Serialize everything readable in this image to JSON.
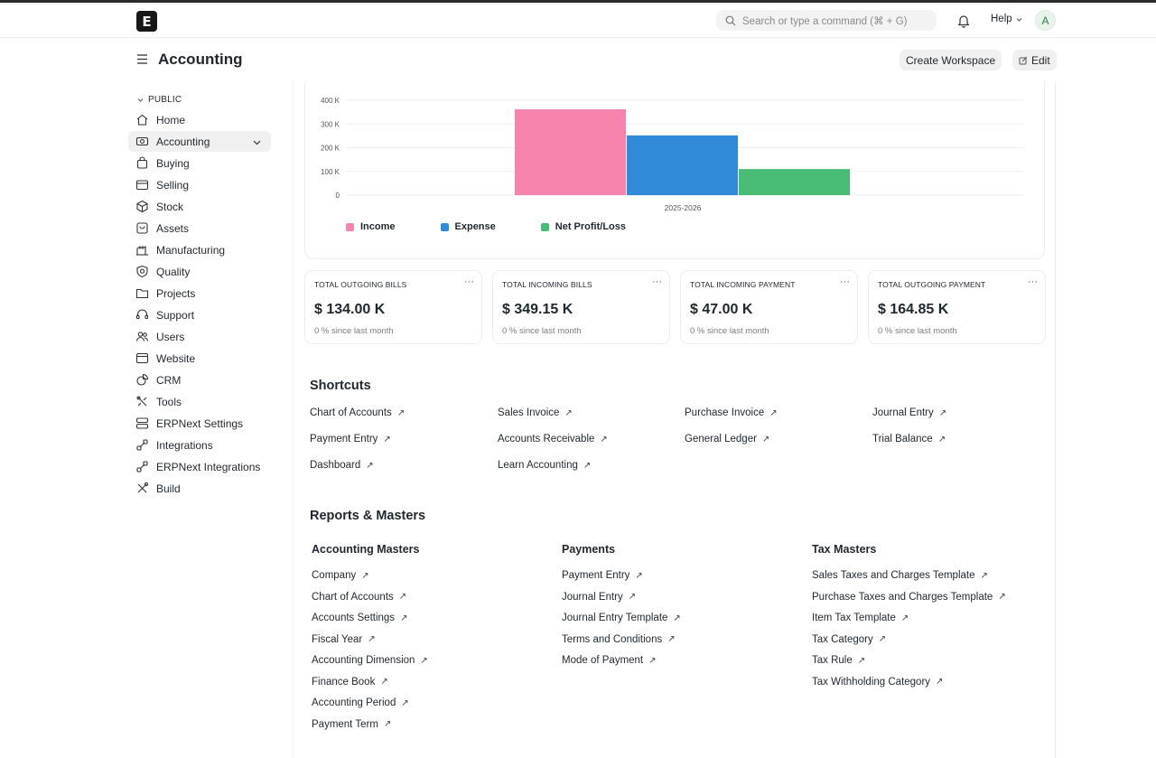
{
  "navbar": {
    "logo_letter": "E",
    "search_placeholder": "Search or type a command (⌘ + G)",
    "help_label": "Help",
    "avatar_letter": "A"
  },
  "page": {
    "title": "Accounting",
    "create_workspace_label": "Create Workspace",
    "edit_label": "Edit"
  },
  "sidebar": {
    "section_label": "PUBLIC",
    "items": [
      {
        "label": "Home",
        "icon": "home-icon"
      },
      {
        "label": "Accounting",
        "icon": "accounting-icon",
        "active": true
      },
      {
        "label": "Buying",
        "icon": "buying-icon"
      },
      {
        "label": "Selling",
        "icon": "selling-icon"
      },
      {
        "label": "Stock",
        "icon": "stock-icon"
      },
      {
        "label": "Assets",
        "icon": "assets-icon"
      },
      {
        "label": "Manufacturing",
        "icon": "manufacturing-icon"
      },
      {
        "label": "Quality",
        "icon": "quality-icon"
      },
      {
        "label": "Projects",
        "icon": "projects-icon"
      },
      {
        "label": "Support",
        "icon": "support-icon"
      },
      {
        "label": "Users",
        "icon": "users-icon"
      },
      {
        "label": "Website",
        "icon": "website-icon"
      },
      {
        "label": "CRM",
        "icon": "crm-icon"
      },
      {
        "label": "Tools",
        "icon": "tools-icon"
      },
      {
        "label": "ERPNext Settings",
        "icon": "settings-icon"
      },
      {
        "label": "Integrations",
        "icon": "integrations-icon"
      },
      {
        "label": "ERPNext Integrations",
        "icon": "integrations-icon"
      },
      {
        "label": "Build",
        "icon": "build-icon"
      }
    ]
  },
  "chart_data": {
    "type": "bar",
    "categories": [
      "2025-2026"
    ],
    "series": [
      {
        "name": "Income",
        "values": [
          362000
        ],
        "color": "#f683ae"
      },
      {
        "name": "Expense",
        "values": [
          252000
        ],
        "color": "#318ad8"
      },
      {
        "name": "Net Profit/Loss",
        "values": [
          110000
        ],
        "color": "#48bb74"
      }
    ],
    "y_ticks": [
      "0",
      "100 K",
      "200 K",
      "300 K",
      "400 K"
    ],
    "ylim": [
      0,
      400000
    ],
    "legend": "bottom-left",
    "grid": true
  },
  "cards": [
    {
      "title": "TOTAL OUTGOING BILLS",
      "value": "$ 134.00 K",
      "sub": "0 % since last month"
    },
    {
      "title": "TOTAL INCOMING BILLS",
      "value": "$ 349.15 K",
      "sub": "0 % since last month"
    },
    {
      "title": "TOTAL INCOMING PAYMENT",
      "value": "$ 47.00 K",
      "sub": "0 % since last month"
    },
    {
      "title": "TOTAL OUTGOING PAYMENT",
      "value": "$ 164.85 K",
      "sub": "0 % since last month"
    }
  ],
  "card_menu": "···",
  "shortcuts": {
    "title": "Shortcuts",
    "items": [
      "Chart of Accounts",
      "Sales Invoice",
      "Purchase Invoice",
      "Journal Entry",
      "Payment Entry",
      "Accounts Receivable",
      "General Ledger",
      "Trial Balance",
      "Dashboard",
      "Learn Accounting"
    ]
  },
  "reports": {
    "title": "Reports & Masters",
    "columns": [
      {
        "title": "Accounting Masters",
        "links": [
          "Company",
          "Chart of Accounts",
          "Accounts Settings",
          "Fiscal Year",
          "Accounting Dimension",
          "Finance Book",
          "Accounting Period",
          "Payment Term"
        ]
      },
      {
        "title": "Payments",
        "links": [
          "Payment Entry",
          "Journal Entry",
          "Journal Entry Template",
          "Terms and Conditions",
          "Mode of Payment"
        ]
      },
      {
        "title": "Tax Masters",
        "links": [
          "Sales Taxes and Charges Template",
          "Purchase Taxes and Charges Template",
          "Item Tax Template",
          "Tax Category",
          "Tax Rule",
          "Tax Withholding Category"
        ]
      }
    ]
  },
  "link_arrow": "↗"
}
